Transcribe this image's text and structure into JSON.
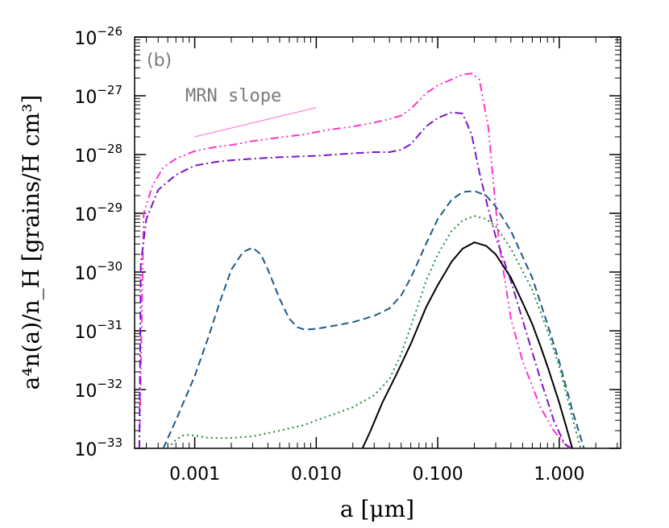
{
  "chart_data": {
    "type": "line",
    "x_scale": "log",
    "y_scale": "log",
    "xlim": [
      0.00032,
      3.2
    ],
    "ylim": [
      1e-33,
      1e-26
    ],
    "grid": false,
    "panel_label": "(b)",
    "xlabel": "a [μm]",
    "ylabel": "a⁴n(a)/n_H [grains/H cm³]",
    "x_ticks": [
      {
        "value": 0.001,
        "label": "0.001"
      },
      {
        "value": 0.01,
        "label": "0.010"
      },
      {
        "value": 0.1,
        "label": "0.100"
      },
      {
        "value": 1.0,
        "label": "1.000"
      }
    ],
    "y_ticks": [
      {
        "value": 1e-33,
        "base": "10",
        "exp": "−33"
      },
      {
        "value": 1e-32,
        "base": "10",
        "exp": "−32"
      },
      {
        "value": 1e-31,
        "base": "10",
        "exp": "−31"
      },
      {
        "value": 1e-30,
        "base": "10",
        "exp": "−30"
      },
      {
        "value": 1e-29,
        "base": "10",
        "exp": "−29"
      },
      {
        "value": 1e-28,
        "base": "10",
        "exp": "−28"
      },
      {
        "value": 1e-27,
        "base": "10",
        "exp": "−27"
      },
      {
        "value": 1e-26,
        "base": "10",
        "exp": "−26"
      }
    ],
    "annotations": [
      {
        "text": "MRN slope",
        "line": {
          "x": [
            0.001,
            0.01
          ],
          "y": [
            2e-28,
            6.3e-28
          ]
        },
        "color": "#ff66cc"
      }
    ],
    "series": [
      {
        "color": "#ff33cc",
        "style": "dash-dot-dot",
        "x": [
          0.00035,
          0.00038,
          0.00045,
          0.00055,
          0.0007,
          0.001,
          0.0015,
          0.002,
          0.003,
          0.005,
          0.008,
          0.012,
          0.02,
          0.03,
          0.04,
          0.05,
          0.06,
          0.08,
          0.1,
          0.13,
          0.16,
          0.19,
          0.22,
          0.26,
          0.32,
          0.4,
          0.5,
          0.7,
          0.9,
          1.1,
          1.22
        ],
        "y": [
          1e-33,
          1e-29,
          3e-29,
          6e-29,
          8.5e-29,
          1.15e-28,
          1.35e-28,
          1.45e-28,
          1.7e-28,
          1.95e-28,
          2.2e-28,
          2.6e-28,
          3e-28,
          3.5e-28,
          4e-28,
          4.6e-28,
          6e-28,
          1.1e-27,
          1.5e-27,
          1.9e-27,
          2.3e-27,
          2.4e-27,
          1.9e-27,
          3e-28,
          3e-30,
          1.6e-31,
          3e-32,
          5e-33,
          2e-33,
          1.2e-33,
          1e-33
        ]
      },
      {
        "color": "#7b16c4",
        "style": "dash-dot",
        "x": [
          0.00035,
          0.00036,
          0.0004,
          0.0005,
          0.0007,
          0.001,
          0.0015,
          0.002,
          0.003,
          0.005,
          0.01,
          0.02,
          0.03,
          0.04,
          0.05,
          0.06,
          0.08,
          0.1,
          0.13,
          0.16,
          0.19,
          0.22,
          0.26,
          0.3,
          0.4,
          0.5,
          0.7,
          0.9,
          1.1,
          1.25
        ],
        "y": [
          1e-33,
          1.4e-30,
          8e-30,
          2.5e-29,
          4.5e-29,
          6.5e-29,
          7.5e-29,
          8e-29,
          8.5e-29,
          9e-29,
          9.5e-29,
          1.05e-28,
          1.1e-28,
          1.1e-28,
          1.2e-28,
          1.5e-28,
          3e-28,
          4.2e-28,
          5.2e-28,
          5e-28,
          2.2e-28,
          5e-29,
          1.2e-29,
          4e-30,
          7e-31,
          1.5e-31,
          1.5e-32,
          3e-33,
          1.2e-33,
          1e-33
        ]
      },
      {
        "color": "#1b5a86",
        "style": "dashed",
        "x": [
          0.00055,
          0.0007,
          0.001,
          0.0013,
          0.0016,
          0.002,
          0.0025,
          0.003,
          0.0035,
          0.004,
          0.005,
          0.006,
          0.007,
          0.008,
          0.01,
          0.015,
          0.02,
          0.03,
          0.04,
          0.05,
          0.06,
          0.08,
          0.1,
          0.13,
          0.16,
          0.2,
          0.25,
          0.3,
          0.4,
          0.6,
          0.8,
          1.0,
          1.3,
          1.6
        ],
        "y": [
          1e-33,
          3e-33,
          1.7e-32,
          8e-32,
          3e-31,
          1.1e-30,
          2.2e-30,
          2.6e-30,
          2e-30,
          1.1e-30,
          3.5e-31,
          1.6e-31,
          1.15e-31,
          1.05e-31,
          1.08e-31,
          1.25e-31,
          1.4e-31,
          1.8e-31,
          2.4e-31,
          4e-31,
          8e-31,
          3e-30,
          8e-30,
          1.7e-29,
          2.3e-29,
          2.4e-29,
          2e-29,
          1.3e-29,
          5e-30,
          8e-31,
          1.3e-31,
          3e-32,
          4e-33,
          1e-33
        ]
      },
      {
        "color": "#1e8a3c",
        "style": "dotted",
        "x": [
          0.0006,
          0.0007,
          0.0008,
          0.0009,
          0.0011,
          0.0013,
          0.0015,
          0.002,
          0.003,
          0.005,
          0.008,
          0.01,
          0.015,
          0.02,
          0.03,
          0.04,
          0.05,
          0.06,
          0.07,
          0.08,
          0.1,
          0.13,
          0.16,
          0.2,
          0.25,
          0.3,
          0.4,
          0.6,
          0.8,
          1.0,
          1.3,
          1.5
        ],
        "y": [
          1e-33,
          1.4e-33,
          1.65e-33,
          1.7e-33,
          1.6e-33,
          1.5e-33,
          1.5e-33,
          1.5e-33,
          1.6e-33,
          2e-33,
          2.5e-33,
          3e-33,
          4e-33,
          5e-33,
          8e-33,
          1.5e-32,
          4e-32,
          1.2e-31,
          3e-31,
          7e-31,
          2e-30,
          5e-30,
          7.5e-30,
          9e-30,
          8e-30,
          6e-30,
          2.5e-30,
          5e-31,
          1e-31,
          2.5e-32,
          3e-33,
          1e-33
        ]
      },
      {
        "color": "#000000",
        "style": "solid",
        "x": [
          0.024,
          0.028,
          0.035,
          0.045,
          0.06,
          0.08,
          0.1,
          0.13,
          0.16,
          0.2,
          0.25,
          0.3,
          0.4,
          0.5,
          0.6,
          0.7,
          0.8,
          1.0,
          1.15,
          1.28
        ],
        "y": [
          1e-33,
          2e-33,
          6e-33,
          1.7e-32,
          6e-32,
          2.5e-31,
          6e-31,
          1.5e-30,
          2.5e-30,
          3.2e-30,
          2.8e-30,
          2e-30,
          8e-31,
          3e-31,
          1.3e-31,
          5.5e-32,
          2.5e-32,
          6e-33,
          2.2e-33,
          1e-33
        ]
      }
    ]
  }
}
